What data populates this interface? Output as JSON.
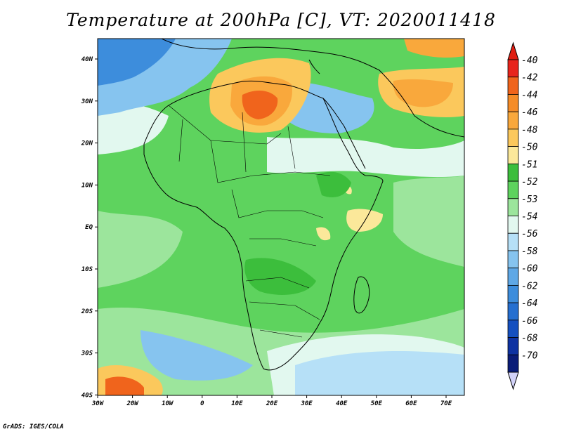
{
  "title": "Temperature at 200hPa [C], VT: 2020011418",
  "credit": "GrADS: IGES/COLA",
  "lon_ticks": [
    "30W",
    "20W",
    "10W",
    "0",
    "10E",
    "20E",
    "30E",
    "40E",
    "50E",
    "60E",
    "70E"
  ],
  "lat_ticks": [
    "40N",
    "30N",
    "20N",
    "10N",
    "EQ",
    "10S",
    "20S",
    "30S",
    "40S"
  ],
  "colorbar": [
    {
      "label": "-40",
      "color": "#e8241c"
    },
    {
      "label": "-42",
      "color": "#f0641c"
    },
    {
      "label": "-44",
      "color": "#f58c28"
    },
    {
      "label": "-46",
      "color": "#f9a83c"
    },
    {
      "label": "-48",
      "color": "#fbc85c"
    },
    {
      "label": "-50",
      "color": "#fbe89a"
    },
    {
      "label": "-51",
      "color": "#3cbe3c"
    },
    {
      "label": "-52",
      "color": "#5ed35e"
    },
    {
      "label": "-53",
      "color": "#9ce59c"
    },
    {
      "label": "-54",
      "color": "#e2f8ef"
    },
    {
      "label": "-56",
      "color": "#b6e0f7"
    },
    {
      "label": "-58",
      "color": "#86c4ef"
    },
    {
      "label": "-60",
      "color": "#5fa8e6"
    },
    {
      "label": "-62",
      "color": "#3d8ddc"
    },
    {
      "label": "-64",
      "color": "#256fd0"
    },
    {
      "label": "-66",
      "color": "#1550c0"
    },
    {
      "label": "-68",
      "color": "#0e32a2"
    },
    {
      "label": "-70",
      "color": "#0a1c78"
    }
  ],
  "colorbar_over_color": "#e01e12",
  "colorbar_under_color": "#d2d2f8"
}
